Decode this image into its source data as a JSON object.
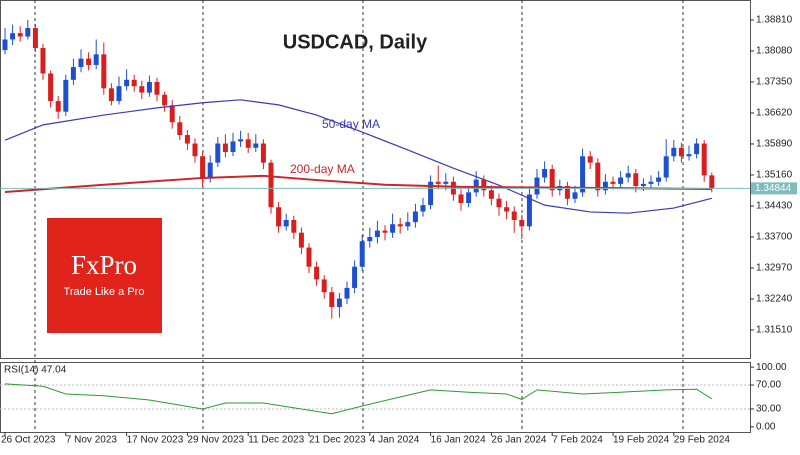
{
  "chart_data": [
    {
      "type": "candlestick",
      "title": "USDCAD, Daily",
      "up_color": "#1d4fd1",
      "down_color": "#d81e1e",
      "ylim": [
        1.3085,
        1.3928
      ],
      "yticks": [
        {
          "value": 1.3881,
          "label": "1.38810"
        },
        {
          "value": 1.3808,
          "label": "1.38080"
        },
        {
          "value": 1.3735,
          "label": "1.37350"
        },
        {
          "value": 1.3662,
          "label": "1.36620"
        },
        {
          "value": 1.3589,
          "label": "1.35890"
        },
        {
          "value": 1.3516,
          "label": "1.35160"
        },
        {
          "value": 1.3443,
          "label": "1.34430"
        },
        {
          "value": 1.337,
          "label": "1.33700"
        },
        {
          "value": 1.3297,
          "label": "1.32970"
        },
        {
          "value": 1.3224,
          "label": "1.32240"
        },
        {
          "value": 1.3151,
          "label": "1.31510"
        }
      ],
      "xticks": [
        {
          "value": 0,
          "label": "26 Oct 2023"
        },
        {
          "value": 8,
          "label": "7 Nov 2023"
        },
        {
          "value": 16,
          "label": "17 Nov 2023"
        },
        {
          "value": 24,
          "label": "29 Nov 2023"
        },
        {
          "value": 32,
          "label": "11 Dec 2023"
        },
        {
          "value": 40,
          "label": "21 Dec 2023"
        },
        {
          "value": 48,
          "label": "4 Jan 2024"
        },
        {
          "value": 56,
          "label": "16 Jan 2024"
        },
        {
          "value": 64,
          "label": "26 Jan 2024"
        },
        {
          "value": 72,
          "label": "7 Feb 2024"
        },
        {
          "value": 80,
          "label": "19 Feb 2024"
        },
        {
          "value": 88,
          "label": "29 Feb 2024"
        }
      ],
      "last_price": {
        "value": 1.34844,
        "label": "1.34844"
      },
      "last_price_color": "#7fbcbc",
      "ohlc": [
        [
          1.381,
          1.3862,
          1.38,
          1.3835
        ],
        [
          1.3835,
          1.387,
          1.3822,
          1.385
        ],
        [
          1.385,
          1.3866,
          1.383,
          1.3842
        ],
        [
          1.3842,
          1.3881,
          1.3835,
          1.3862
        ],
        [
          1.3862,
          1.3872,
          1.3805,
          1.3815
        ],
        [
          1.3815,
          1.3825,
          1.374,
          1.3755
        ],
        [
          1.3755,
          1.3762,
          1.3675,
          1.369
        ],
        [
          1.369,
          1.3702,
          1.3648,
          1.3665
        ],
        [
          1.3665,
          1.3752,
          1.3655,
          1.374
        ],
        [
          1.374,
          1.379,
          1.3728,
          1.377
        ],
        [
          1.377,
          1.3812,
          1.3758,
          1.379
        ],
        [
          1.379,
          1.3805,
          1.3762,
          1.3775
        ],
        [
          1.3775,
          1.3835,
          1.3765,
          1.38
        ],
        [
          1.38,
          1.3828,
          1.3705,
          1.372
        ],
        [
          1.372,
          1.3732,
          1.368,
          1.369
        ],
        [
          1.369,
          1.3748,
          1.3682,
          1.3725
        ],
        [
          1.3725,
          1.3765,
          1.3715,
          1.374
        ],
        [
          1.374,
          1.3752,
          1.3712,
          1.3725
        ],
        [
          1.3725,
          1.3738,
          1.3695,
          1.371
        ],
        [
          1.371,
          1.375,
          1.37,
          1.3735
        ],
        [
          1.3735,
          1.3745,
          1.369,
          1.3705
        ],
        [
          1.3705,
          1.3712,
          1.3665,
          1.368
        ],
        [
          1.368,
          1.3692,
          1.3625,
          1.364
        ],
        [
          1.364,
          1.3655,
          1.3598,
          1.361
        ],
        [
          1.361,
          1.3622,
          1.3575,
          1.359
        ],
        [
          1.359,
          1.3602,
          1.3545,
          1.356
        ],
        [
          1.356,
          1.3572,
          1.3488,
          1.351
        ],
        [
          1.351,
          1.3562,
          1.3498,
          1.3545
        ],
        [
          1.3545,
          1.3605,
          1.3535,
          1.359
        ],
        [
          1.359,
          1.3612,
          1.3558,
          1.357
        ],
        [
          1.357,
          1.3615,
          1.356,
          1.3595
        ],
        [
          1.3595,
          1.362,
          1.3582,
          1.36
        ],
        [
          1.36,
          1.3615,
          1.3568,
          1.358
        ],
        [
          1.358,
          1.3612,
          1.357,
          1.359
        ],
        [
          1.359,
          1.36,
          1.353,
          1.3545
        ],
        [
          1.3545,
          1.3552,
          1.3425,
          1.344
        ],
        [
          1.344,
          1.3452,
          1.338,
          1.3395
        ],
        [
          1.3395,
          1.3425,
          1.3385,
          1.341
        ],
        [
          1.341,
          1.342,
          1.3365,
          1.338
        ],
        [
          1.338,
          1.3392,
          1.333,
          1.3345
        ],
        [
          1.3345,
          1.3355,
          1.3285,
          1.33
        ],
        [
          1.33,
          1.3312,
          1.3255,
          1.327
        ],
        [
          1.327,
          1.328,
          1.3225,
          1.324
        ],
        [
          1.324,
          1.3252,
          1.3178,
          1.3205
        ],
        [
          1.3205,
          1.3238,
          1.318,
          1.3225
        ],
        [
          1.3225,
          1.3265,
          1.3212,
          1.325
        ],
        [
          1.325,
          1.3315,
          1.3238,
          1.33
        ],
        [
          1.33,
          1.3375,
          1.329,
          1.336
        ],
        [
          1.336,
          1.3392,
          1.3345,
          1.337
        ],
        [
          1.337,
          1.3408,
          1.3355,
          1.3385
        ],
        [
          1.3385,
          1.3398,
          1.3362,
          1.338
        ],
        [
          1.338,
          1.3425,
          1.3368,
          1.34
        ],
        [
          1.34,
          1.3415,
          1.3378,
          1.3395
        ],
        [
          1.3395,
          1.3428,
          1.3385,
          1.3405
        ],
        [
          1.3405,
          1.3448,
          1.3392,
          1.343
        ],
        [
          1.343,
          1.3462,
          1.3418,
          1.3445
        ],
        [
          1.3445,
          1.3515,
          1.3435,
          1.35
        ],
        [
          1.35,
          1.3538,
          1.3482,
          1.3495
        ],
        [
          1.3495,
          1.352,
          1.348,
          1.35
        ],
        [
          1.35,
          1.3512,
          1.3455,
          1.347
        ],
        [
          1.347,
          1.3482,
          1.3432,
          1.345
        ],
        [
          1.345,
          1.349,
          1.344,
          1.3475
        ],
        [
          1.3475,
          1.3525,
          1.3465,
          1.3505
        ],
        [
          1.3505,
          1.3515,
          1.3465,
          1.348
        ],
        [
          1.348,
          1.3492,
          1.3445,
          1.346
        ],
        [
          1.346,
          1.3472,
          1.342,
          1.344
        ],
        [
          1.344,
          1.3455,
          1.3412,
          1.343
        ],
        [
          1.343,
          1.3442,
          1.338,
          1.341
        ],
        [
          1.341,
          1.3422,
          1.3365,
          1.3395
        ],
        [
          1.3395,
          1.3485,
          1.3385,
          1.347
        ],
        [
          1.347,
          1.353,
          1.346,
          1.351
        ],
        [
          1.351,
          1.3548,
          1.3498,
          1.353
        ],
        [
          1.353,
          1.354,
          1.3465,
          1.348
        ],
        [
          1.348,
          1.3505,
          1.3468,
          1.349
        ],
        [
          1.349,
          1.35,
          1.3445,
          1.346
        ],
        [
          1.346,
          1.349,
          1.345,
          1.3475
        ],
        [
          1.3475,
          1.3578,
          1.3465,
          1.356
        ],
        [
          1.356,
          1.3572,
          1.353,
          1.3545
        ],
        [
          1.3545,
          1.3555,
          1.3465,
          1.348
        ],
        [
          1.348,
          1.3518,
          1.347,
          1.35
        ],
        [
          1.35,
          1.3512,
          1.3482,
          1.3495
        ],
        [
          1.3495,
          1.3525,
          1.3485,
          1.351
        ],
        [
          1.351,
          1.3538,
          1.3498,
          1.352
        ],
        [
          1.352,
          1.353,
          1.3475,
          1.349
        ],
        [
          1.349,
          1.3508,
          1.3478,
          1.3495
        ],
        [
          1.3495,
          1.3515,
          1.3485,
          1.35
        ],
        [
          1.35,
          1.3525,
          1.349,
          1.351
        ],
        [
          1.351,
          1.36,
          1.35,
          1.356
        ],
        [
          1.356,
          1.3598,
          1.3548,
          1.358
        ],
        [
          1.358,
          1.3592,
          1.3545,
          1.356
        ],
        [
          1.356,
          1.3585,
          1.355,
          1.3565
        ],
        [
          1.3565,
          1.3602,
          1.3555,
          1.359
        ],
        [
          1.359,
          1.3598,
          1.35,
          1.3515
        ],
        [
          1.3515,
          1.3522,
          1.3475,
          1.3484
        ]
      ],
      "series": [
        {
          "name": "50-day MA",
          "color": "#3a3ab4",
          "x": [
            0,
            5,
            13,
            20,
            26,
            31,
            36,
            41,
            47,
            53,
            59,
            65,
            71,
            77,
            82,
            88,
            93
          ],
          "values": [
            1.3598,
            1.3634,
            1.3657,
            1.3674,
            1.3686,
            1.3693,
            1.3681,
            1.3657,
            1.3617,
            1.3575,
            1.3532,
            1.3492,
            1.3445,
            1.3429,
            1.3426,
            1.3438,
            1.3461
          ]
        },
        {
          "name": "200-day MA",
          "color": "#c8262a",
          "x": [
            0,
            13,
            26,
            34,
            41,
            50,
            60,
            75,
            93
          ],
          "values": [
            1.3476,
            1.3493,
            1.3509,
            1.3514,
            1.3504,
            1.3493,
            1.3488,
            1.3486,
            1.3483
          ]
        }
      ]
    },
    {
      "type": "line",
      "label": "RSI(14) 47.04",
      "color": "#2e9a2e",
      "ylim": [
        -8.6,
        108.6
      ],
      "yticks": [
        {
          "value": 100,
          "label": "100.00"
        },
        {
          "value": 70,
          "label": "70.00"
        },
        {
          "value": 30,
          "label": "30.00"
        },
        {
          "value": 0,
          "label": "0.00"
        }
      ],
      "levels": [
        70,
        30
      ],
      "x": [
        0,
        5,
        8,
        13,
        19,
        26,
        29,
        34,
        39,
        43,
        47,
        52,
        56,
        61,
        66,
        68,
        70,
        76,
        81,
        87,
        91,
        93
      ],
      "values": [
        72,
        68,
        55,
        52,
        45,
        30,
        40,
        40,
        30,
        22,
        35,
        50,
        62,
        58,
        55,
        46,
        62,
        55,
        58,
        62,
        63,
        47.04
      ]
    }
  ],
  "logo": {
    "name": "FxPro",
    "tagline": "Trade Like a Pro",
    "color": "#e0241c"
  }
}
